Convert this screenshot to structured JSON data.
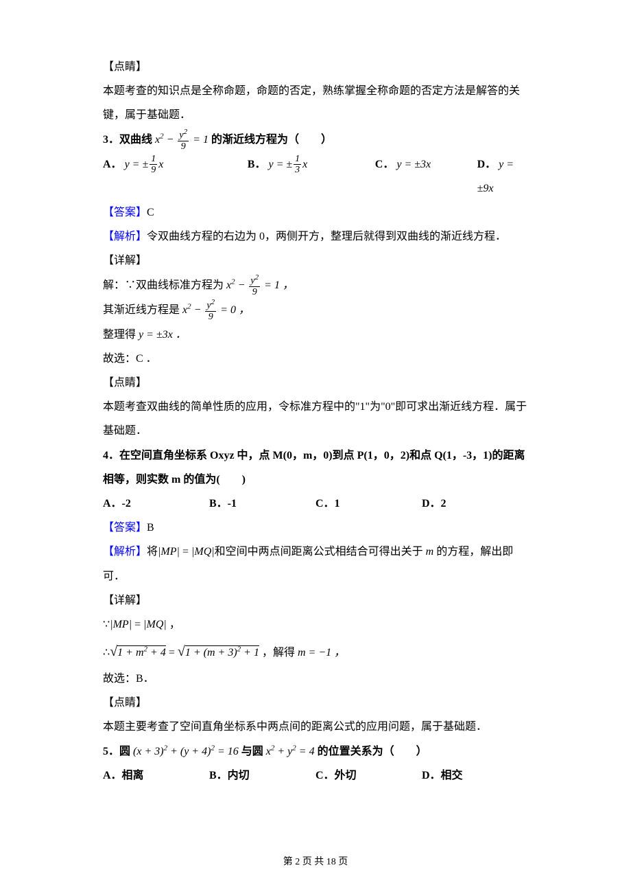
{
  "sec0": {
    "h": "【点睛】",
    "p1": "本题考查的知识点是全称命题，命题的否定，熟练掌握全称命题的否定方法是解答的关键，属于基础题．"
  },
  "q3": {
    "stem_pre": "3．双曲线",
    "stem_post": "的渐近线方程为（　　）",
    "eq_lhs_pre": "x",
    "eq_lhs_exp": "2",
    "eq_minus": " − ",
    "frac_num_pre": "y",
    "frac_num_exp": "2",
    "frac_den": "9",
    "eq_rhs": " = 1",
    "options": {
      "A_label": "A．",
      "A_pre": "y = ±",
      "A_num": "1",
      "A_den": "9",
      "A_post": "x",
      "B_label": "B．",
      "B_pre": "y = ±",
      "B_num": "1",
      "B_den": "3",
      "B_post": "x",
      "C_label": "C．",
      "C_val": "y = ±3x",
      "D_label": "D．",
      "D_val": "y = ±9x"
    },
    "ans_label": "【答案】",
    "ans_val": "C",
    "jiexi_label": "【解析】",
    "jiexi_text": "令双曲线方程的右边为 0，两侧开方，整理后就得到双曲线的渐近线方程．",
    "detail_h": "【详解】",
    "line1_pre": "解：∵双曲线标准方程为",
    "line1_eq_rhs": " = 1 ，",
    "line2_pre": "其渐近线方程是",
    "line2_eq_rhs": " = 0 ，",
    "line3_pre": "整理得 ",
    "line3_val": "y = ±3x ．",
    "line4": "故选：C ．",
    "dianjing_h": "【点睛】",
    "dianjing_p": "本题考查双曲线的简单性质的应用，令标准方程中的\"1\"为\"0\"即可求出渐近线方程．属于基础题．"
  },
  "q4": {
    "stem": "4．在空间直角坐标系 Oxyz 中，点 M(0，m，0)到点 P(1，0，2)和点 Q(1，-3，1)的距离相等，则实数 m 的值为(　　)",
    "options": {
      "A": "A．-2",
      "B": "B．-1",
      "C": "C．1",
      "D": "D．2"
    },
    "ans_label": "【答案】",
    "ans_val": "B",
    "jiexi_label": "【解析】",
    "jiexi_pre": "将",
    "jiexi_mid": "和空间中两点间距离公式相结合可得出关于 ",
    "jiexi_m": "m",
    "jiexi_post": " 的方程，解出即可．",
    "MP": "|MP|",
    "eq": " = ",
    "MQ": "|MQ|",
    "detail_h": "【详解】",
    "line1_pre": "∵",
    "line1_mp": "|MP|",
    "line1_eq": " = ",
    "line1_mq": "|MQ|",
    "line1_post": " ，",
    "line2_pre": "∴",
    "sqrt1": "1 + m",
    "sqrt1_exp": "2",
    "sqrt1_post": " + 4",
    "line2_eq": " = ",
    "sqrt2_pre": "1 + (m + 3)",
    "sqrt2_exp": "2",
    "sqrt2_post": " + 1",
    "line2_mid": " ，解得 ",
    "line2_sol": "m = −1 ，",
    "line3": "故选：B．",
    "dianjing_h": "【点睛】",
    "dianjing_p": "本题主要考查了空间直角坐标系中两点间的距离公式的应用问题，属于基础题．"
  },
  "q5": {
    "stem_pre": "5．圆",
    "eq1": "(x + 3)",
    "eq1_exp": "2",
    "eq1_plus": " + (y + 4)",
    "eq1_exp2": "2",
    "eq1_rhs": " = 16",
    "stem_mid": "与圆",
    "eq2_x": "x",
    "eq2_xexp": "2",
    "eq2_plus": " + y",
    "eq2_yexp": "2",
    "eq2_rhs": " = 4",
    "stem_post": "的位置关系为（　　）",
    "options": {
      "A": "A．相离",
      "B": "B．内切",
      "C": "C．外切",
      "D": "D．相交"
    }
  },
  "footer": "第 2 页 共 18 页"
}
